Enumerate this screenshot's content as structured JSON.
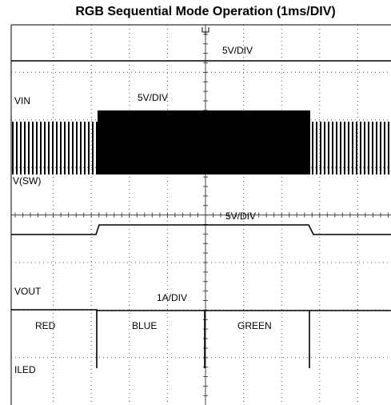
{
  "title": "RGB Sequential Mode Operation (1ms/DIV)",
  "labels": {
    "vin_scale": "5V/DIV",
    "vin": "VIN",
    "sw_scale": "5V/DIV",
    "sw": "V(SW)",
    "vout_scale": "5V/DIV",
    "vout": "VOUT",
    "iled_scale": "1A/DIV",
    "red": "RED",
    "blue": "BLUE",
    "green": "GREEN",
    "iled": "ILED"
  }
}
